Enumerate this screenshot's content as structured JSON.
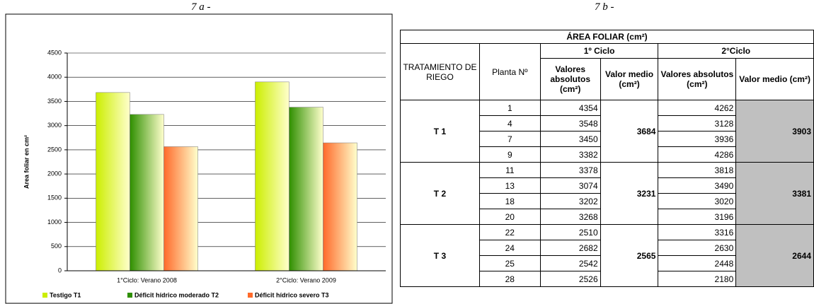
{
  "chart_data": {
    "type": "bar",
    "caption": "7 a -",
    "y_label": "Area foliar en cm²",
    "categories": [
      "1°Ciclo: Verano 2008",
      "2°Ciclo: Verano 2009"
    ],
    "series": [
      {
        "name": "Testigo T1",
        "color": "#ccee00",
        "values": [
          3684,
          3903
        ]
      },
      {
        "name": "Déficit hídrico moderado T2",
        "color": "#2f8f00",
        "values": [
          3231,
          3381
        ]
      },
      {
        "name": "Déficit hídrico severo T3",
        "color": "#ff6a2a",
        "values": [
          2565,
          2644
        ]
      }
    ],
    "ylim": [
      0,
      4500
    ],
    "yticks": [
      0,
      500,
      1000,
      1500,
      2000,
      2500,
      3000,
      3500,
      4000,
      4500
    ],
    "grid": true,
    "legend": "bottom"
  },
  "table": {
    "caption": "7 b -",
    "title": "ÁREA FOLIAR (cm²)",
    "headers": {
      "treatment": "TRATAMIENTO DE RIEGO",
      "plant": "Planta Nº",
      "cycle1": "1º Ciclo",
      "cycle2": "2°Ciclo",
      "absolute": "Valores absolutos (cm²)",
      "mean": "Valor medio (cm²)"
    },
    "groups": [
      {
        "label": "T 1",
        "plants": [
          1,
          4,
          7,
          9
        ],
        "cycle1": [
          4354,
          3548,
          3450,
          3382
        ],
        "cycle1_mean": 3684,
        "cycle2": [
          4262,
          3128,
          3936,
          4286
        ],
        "cycle2_mean": 3903
      },
      {
        "label": "T 2",
        "plants": [
          11,
          13,
          18,
          20
        ],
        "cycle1": [
          3378,
          3074,
          3202,
          3268
        ],
        "cycle1_mean": 3231,
        "cycle2": [
          3818,
          3490,
          3020,
          3196
        ],
        "cycle2_mean": 3381
      },
      {
        "label": "T 3",
        "plants": [
          22,
          24,
          25,
          28
        ],
        "cycle1": [
          2510,
          2682,
          2542,
          2526
        ],
        "cycle1_mean": 2565,
        "cycle2": [
          3316,
          2630,
          2448,
          2180
        ],
        "cycle2_mean": 2644
      }
    ]
  }
}
